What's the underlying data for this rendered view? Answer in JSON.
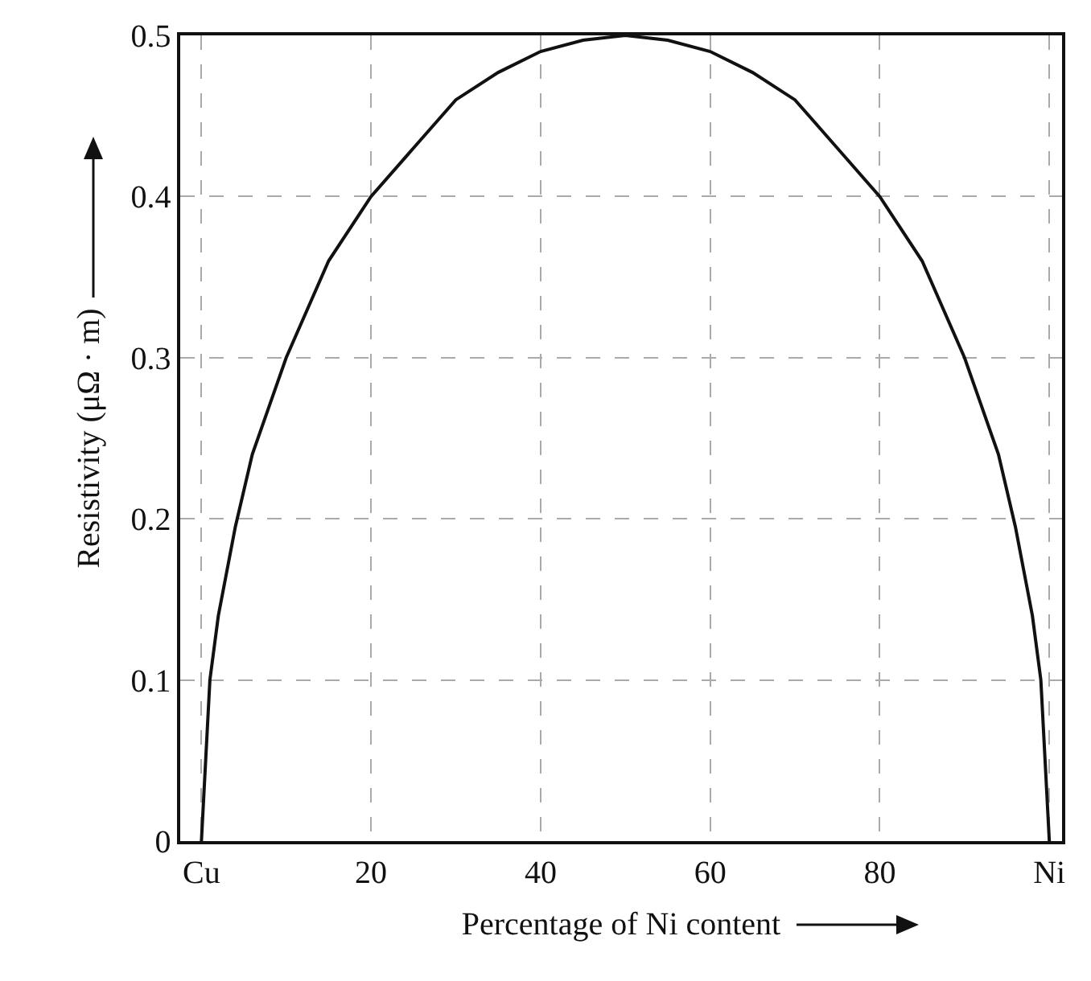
{
  "chart_data": {
    "type": "line",
    "xlabel": "Percentage of Ni content",
    "ylabel": "Resistivity (μΩ · m)",
    "x": [
      0,
      1,
      2,
      4,
      6,
      8,
      10,
      15,
      20,
      25,
      30,
      35,
      40,
      45,
      50,
      55,
      60,
      65,
      70,
      75,
      80,
      85,
      90,
      92,
      94,
      96,
      98,
      99,
      100
    ],
    "series": [
      {
        "color": "#111111",
        "values": [
          0,
          0.1,
          0.14,
          0.195,
          0.24,
          0.27,
          0.3,
          0.36,
          0.4,
          0.43,
          0.46,
          0.477,
          0.49,
          0.497,
          0.5,
          0.497,
          0.49,
          0.477,
          0.46,
          0.43,
          0.4,
          0.36,
          0.3,
          0.27,
          0.24,
          0.195,
          0.14,
          0.1,
          0
        ]
      }
    ],
    "xlim": [
      -2.5,
      101.5
    ],
    "ylim": [
      0,
      0.5
    ],
    "xticks": [
      {
        "value": 0,
        "label": "Cu"
      },
      20,
      40,
      60,
      80,
      {
        "value": 100,
        "label": "Ni"
      }
    ],
    "yticks": [
      0,
      0.1,
      0.2,
      0.3,
      0.4,
      0.5
    ],
    "grid": true,
    "marker": "none",
    "line_style": "solid"
  }
}
